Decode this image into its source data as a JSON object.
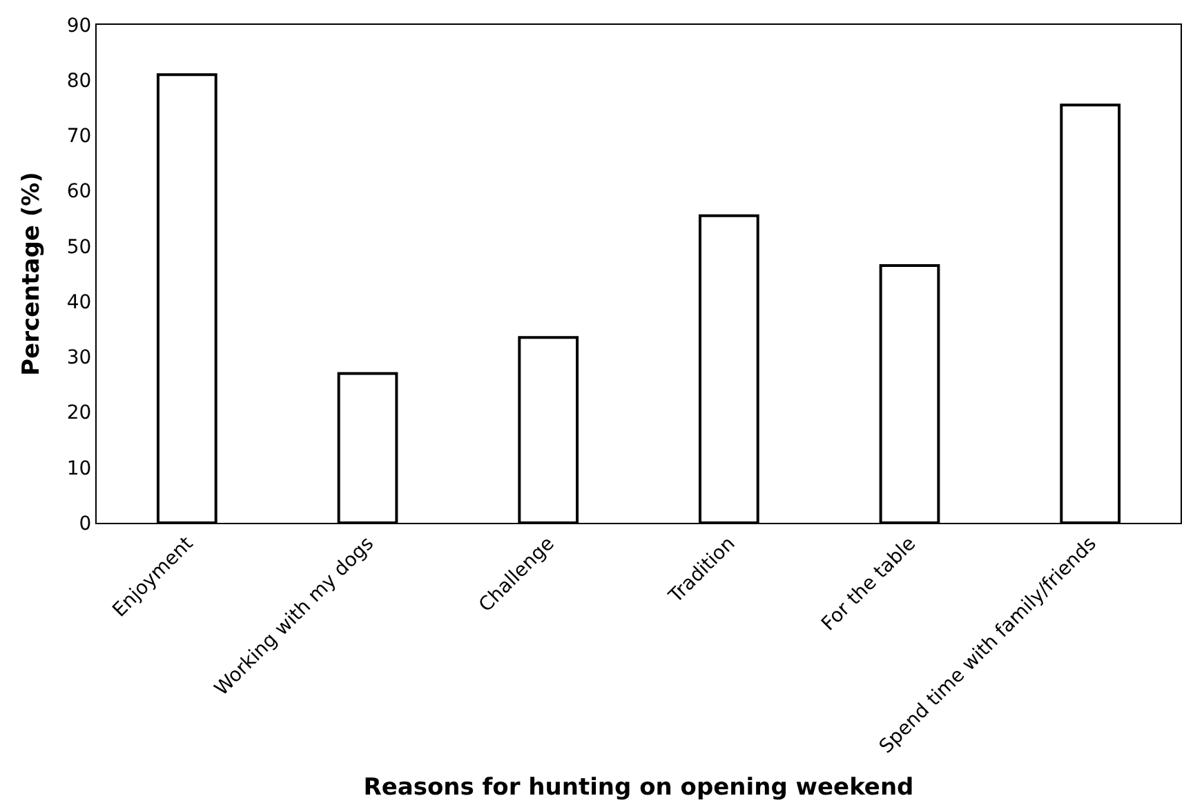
{
  "chart_data": {
    "type": "bar",
    "xlabel": "Reasons for hunting on opening weekend",
    "ylabel": "Percentage (%)",
    "categories": [
      "Enjoyment",
      "Working with my dogs",
      "Challenge",
      "Tradition",
      "For the table",
      "Spend time with family/friends"
    ],
    "values": [
      81,
      27,
      33.5,
      55.5,
      46.5,
      75.5
    ],
    "color": "#ffffff",
    "ylim": [
      0,
      90
    ],
    "yticks": [
      0,
      10,
      20,
      30,
      40,
      50,
      60,
      70,
      80,
      90
    ]
  }
}
